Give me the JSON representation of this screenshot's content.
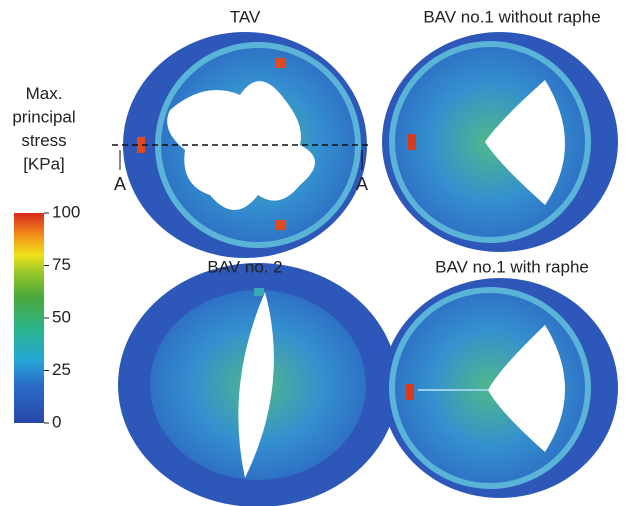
{
  "colorbar": {
    "title": [
      "Max.",
      "principal",
      "stress",
      "[KPa]"
    ],
    "ticks": [
      0,
      25,
      50,
      75,
      100
    ]
  },
  "panels": [
    {
      "title": "TAV"
    },
    {
      "title": "BAV no.1 without raphe"
    },
    {
      "title": "BAV no. 2"
    },
    {
      "title": "BAV no.1 with raphe"
    }
  ],
  "section_labels": [
    "A",
    "A"
  ]
}
